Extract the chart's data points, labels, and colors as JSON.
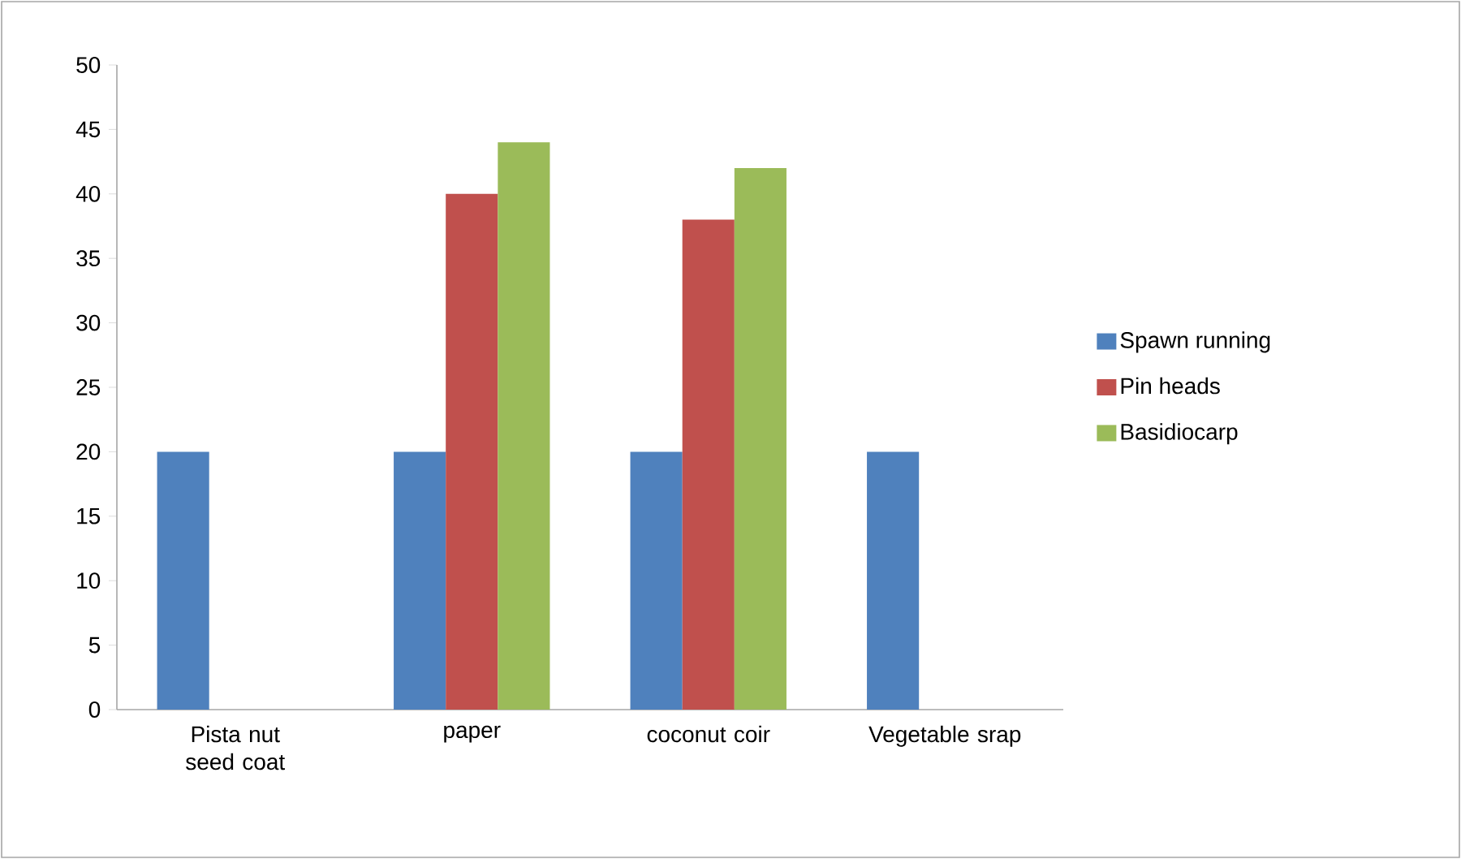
{
  "chart_data": {
    "type": "bar",
    "categories": [
      "Pista nut seed coat",
      "paper",
      "coconut coir",
      "Vegetable srap"
    ],
    "series": [
      {
        "name": "Spawn running",
        "color": "#4f81bd",
        "values": [
          20,
          20,
          20,
          20
        ]
      },
      {
        "name": "Pin heads",
        "color": "#c0504d",
        "values": [
          null,
          40,
          38,
          null
        ]
      },
      {
        "name": "Basidiocarp",
        "color": "#9bbb59",
        "values": [
          null,
          44,
          42,
          null
        ]
      }
    ],
    "ylim": [
      0,
      50
    ],
    "yticks": [
      0,
      5,
      10,
      15,
      20,
      25,
      30,
      35,
      40,
      45,
      50
    ],
    "grid": false,
    "legend": "right"
  }
}
